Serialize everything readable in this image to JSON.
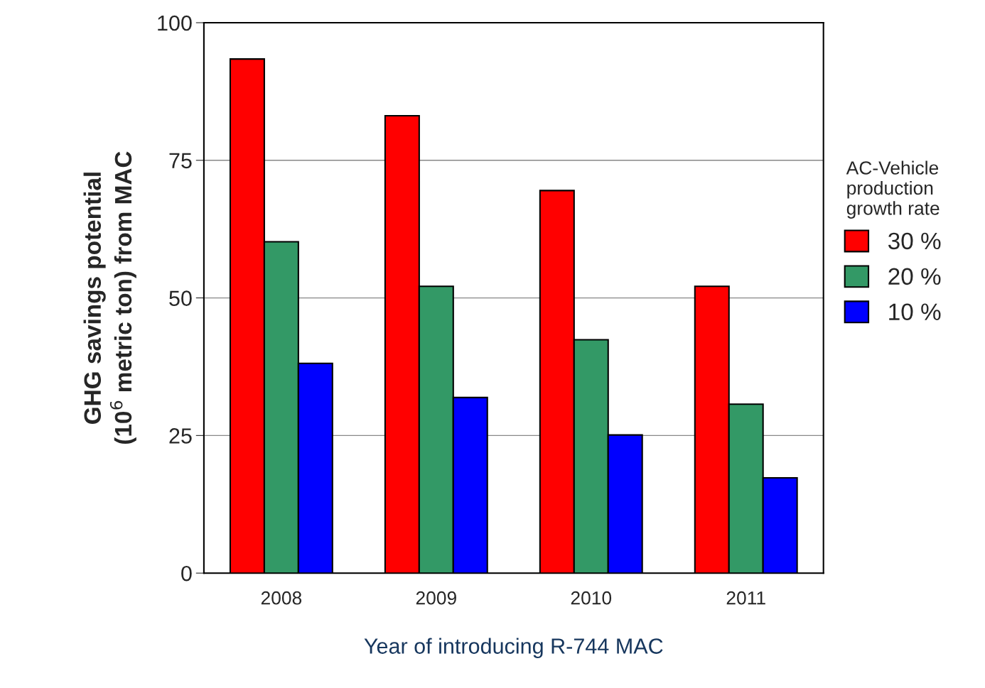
{
  "chart_data": {
    "type": "bar",
    "xlabel": "Year of introducing R-744 MAC",
    "ylabel": "GHG savings potential\n(10$^{6}$ metric ton) from MAC",
    "legend_title": "AC-Vehicle\nproduction\ngrowth rate",
    "categories": [
      "2008",
      "2009",
      "2010",
      "2011"
    ],
    "series": [
      {
        "name": "30 %",
        "color": "#ff0000",
        "values": [
          93.4,
          83.1,
          69.5,
          52.1
        ]
      },
      {
        "name": "20 %",
        "color": "#339966",
        "values": [
          60.2,
          52.1,
          42.4,
          30.7
        ]
      },
      {
        "name": "10 %",
        "color": "#0000ff",
        "values": [
          38.1,
          31.9,
          25.1,
          17.3
        ]
      }
    ],
    "ylim": [
      0,
      100
    ],
    "yticks": [
      0,
      25,
      50,
      75,
      100
    ],
    "grid": "y",
    "legend": "right"
  }
}
